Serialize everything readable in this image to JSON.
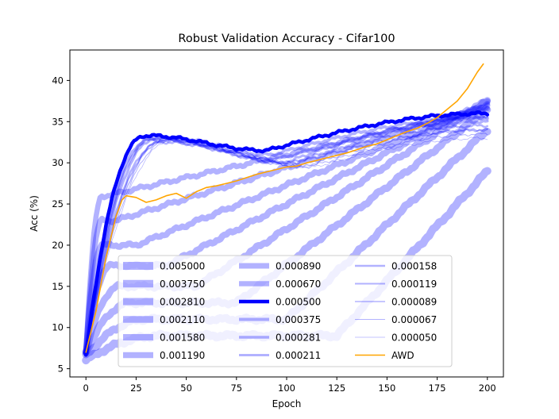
{
  "chart_data": {
    "type": "line",
    "title": "Robust Validation Accuracy - Cifar100",
    "xlabel": "Epoch",
    "ylabel": "Acc (%)",
    "xlim": [
      -8,
      208
    ],
    "ylim": [
      4,
      43.7
    ],
    "xticks": [
      0,
      25,
      50,
      75,
      100,
      125,
      150,
      175,
      200
    ],
    "yticks": [
      5,
      10,
      15,
      20,
      25,
      30,
      35,
      40
    ],
    "grid": false,
    "legend_position": "lower-center",
    "legend_columns": 3,
    "base_color": "#0000ff",
    "awd_color": "#ffa500",
    "series": [
      {
        "name": "0.005000",
        "onset": 125,
        "start": 6.0,
        "plateau": 9.0,
        "final": 29.0
      },
      {
        "name": "0.003750",
        "onset": 100,
        "start": 6.5,
        "plateau": 11.0,
        "final": 34.0
      },
      {
        "name": "0.002810",
        "onset": 75,
        "start": 7.0,
        "plateau": 13.0,
        "final": 36.5
      },
      {
        "name": "0.002110",
        "onset": 55,
        "start": 7.0,
        "plateau": 15.0,
        "final": 37.5
      },
      {
        "name": "0.001580",
        "onset": 40,
        "start": 7.0,
        "plateau": 17.5,
        "final": 37.5
      },
      {
        "name": "0.001190",
        "onset": 25,
        "start": 7.0,
        "plateau": 20.0,
        "final": 37.0
      },
      {
        "name": "0.000890",
        "onset": 15,
        "start": 7.0,
        "plateau": 23.0,
        "final": 37.0
      },
      {
        "name": "0.000670",
        "onset": 10,
        "start": 7.0,
        "plateau": 26.0,
        "final": 36.5
      },
      {
        "name": "0.000500",
        "start": 6.5,
        "peak": 33.3,
        "dip": 31.5,
        "final": 36.0,
        "highlight": true
      },
      {
        "name": "0.000375",
        "start": 7.0,
        "peak": 32.8,
        "dip": 31.0,
        "final": 35.5
      },
      {
        "name": "0.000281",
        "start": 7.0,
        "peak": 33.0,
        "dip": 30.5,
        "final": 35.0
      },
      {
        "name": "0.000211",
        "start": 7.0,
        "peak": 33.0,
        "dip": 30.0,
        "final": 35.5
      },
      {
        "name": "0.000158",
        "start": 7.0,
        "peak": 32.5,
        "dip": 30.0,
        "final": 34.5
      },
      {
        "name": "0.000119",
        "start": 7.0,
        "peak": 32.8,
        "dip": 30.0,
        "final": 34.0
      },
      {
        "name": "0.000089",
        "start": 7.0,
        "peak": 33.0,
        "dip": 29.5,
        "final": 34.0
      },
      {
        "name": "0.000067",
        "start": 7.0,
        "peak": 33.0,
        "dip": 29.5,
        "final": 33.5
      },
      {
        "name": "0.000050",
        "start": 7.0,
        "peak": 33.0,
        "dip": 29.5,
        "final": 33.0
      },
      {
        "name": "AWD",
        "awd": true,
        "x": [
          0,
          5,
          10,
          15,
          18,
          20,
          25,
          30,
          35,
          40,
          45,
          50,
          55,
          60,
          65,
          70,
          75,
          80,
          85,
          90,
          95,
          100,
          105,
          110,
          115,
          120,
          125,
          130,
          135,
          140,
          145,
          150,
          155,
          160,
          165,
          170,
          175,
          180,
          185,
          190,
          195,
          198
        ],
        "y": [
          7.0,
          12.0,
          18.5,
          23.5,
          25.5,
          26.0,
          25.8,
          25.2,
          25.5,
          26.0,
          26.3,
          25.7,
          26.5,
          27.0,
          27.2,
          27.5,
          27.8,
          28.2,
          28.6,
          28.9,
          29.2,
          29.5,
          29.6,
          30.0,
          30.3,
          30.6,
          30.9,
          31.2,
          31.6,
          32.0,
          32.3,
          32.8,
          33.3,
          33.8,
          34.2,
          34.8,
          35.5,
          36.5,
          37.5,
          39.0,
          41.0,
          42.0
        ]
      }
    ]
  }
}
